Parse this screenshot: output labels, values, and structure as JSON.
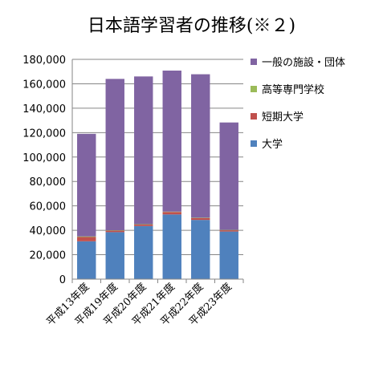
{
  "chart_data": {
    "type": "bar",
    "stacked": true,
    "title": "日本語学習者の推移(※２)",
    "categories": [
      "平成13年度",
      "平成19年度",
      "平成20年度",
      "平成21年度",
      "平成22年度",
      "平成23年度"
    ],
    "series": [
      {
        "name": "大学",
        "color": "#4f81bd",
        "values": [
          31000,
          38500,
          43500,
          53000,
          48500,
          39000
        ]
      },
      {
        "name": "短期大学",
        "color": "#c0504d",
        "values": [
          3500,
          1200,
          1200,
          2000,
          1500,
          1000
        ]
      },
      {
        "name": "高等専門学校",
        "color": "#9bbb59",
        "values": [
          500,
          300,
          300,
          300,
          300,
          300
        ]
      },
      {
        "name": "一般の施設・団体",
        "color": "#8064a2",
        "values": [
          84000,
          124000,
          121000,
          115500,
          117500,
          88000
        ]
      }
    ],
    "legend_order": [
      "一般の施設・団体",
      "高等専門学校",
      "短期大学",
      "大学"
    ],
    "yticks": [
      "0",
      "20,000",
      "40,000",
      "60,000",
      "80,000",
      "100,000",
      "120,000",
      "140,000",
      "160,000",
      "180,000"
    ],
    "ylim": [
      0,
      180000
    ],
    "grid": true,
    "legend_position": "right"
  }
}
